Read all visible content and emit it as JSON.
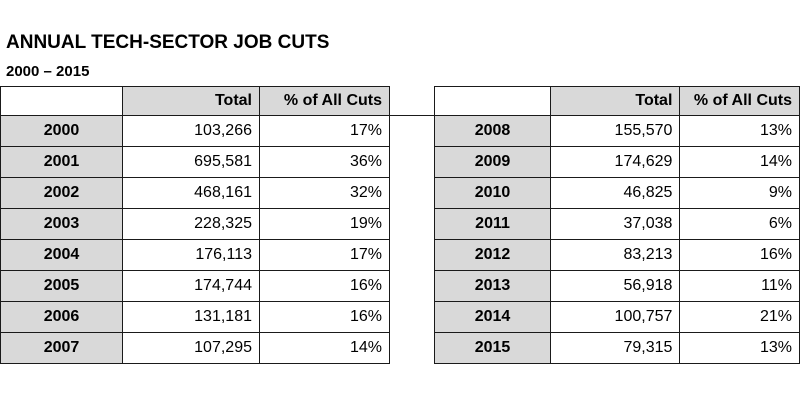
{
  "title": "ANNUAL TECH-SECTOR JOB CUTS",
  "subtitle": "2000 – 2015",
  "columns": {
    "total": "Total",
    "percent": "% of All Cuts"
  },
  "left_rows": [
    {
      "year": "2000",
      "total": "103,266",
      "percent": "17%"
    },
    {
      "year": "2001",
      "total": "695,581",
      "percent": "36%"
    },
    {
      "year": "2002",
      "total": "468,161",
      "percent": "32%"
    },
    {
      "year": "2003",
      "total": "228,325",
      "percent": "19%"
    },
    {
      "year": "2004",
      "total": "176,113",
      "percent": "17%"
    },
    {
      "year": "2005",
      "total": "174,744",
      "percent": "16%"
    },
    {
      "year": "2006",
      "total": "131,181",
      "percent": "16%"
    },
    {
      "year": "2007",
      "total": "107,295",
      "percent": "14%"
    }
  ],
  "right_rows": [
    {
      "year": "2008",
      "total": "155,570",
      "percent": "13%"
    },
    {
      "year": "2009",
      "total": "174,629",
      "percent": "14%"
    },
    {
      "year": "2010",
      "total": "46,825",
      "percent": "9%"
    },
    {
      "year": "2011",
      "total": "37,038",
      "percent": "6%"
    },
    {
      "year": "2012",
      "total": "83,213",
      "percent": "16%"
    },
    {
      "year": "2013",
      "total": "56,918",
      "percent": "11%"
    },
    {
      "year": "2014",
      "total": "100,757",
      "percent": "21%"
    },
    {
      "year": "2015",
      "total": "79,315",
      "percent": "13%"
    }
  ]
}
